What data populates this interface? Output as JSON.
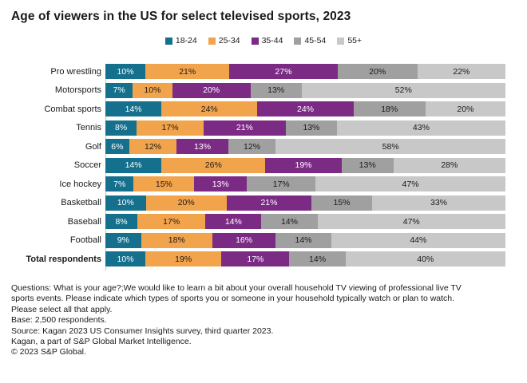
{
  "title": "Age of viewers in the US for select televised sports, 2023",
  "chart_data": {
    "type": "bar",
    "variant": "stacked-horizontal-100pct",
    "title": "Age of viewers in the US for select televised sports, 2023",
    "xlabel": "",
    "ylabel": "",
    "xlim": [
      0,
      100
    ],
    "grid": false,
    "legend_position": "top-center",
    "value_suffix": "%",
    "bold_category": "Total respondents",
    "categories": [
      "Pro wrestling",
      "Motorsports",
      "Combat sports",
      "Tennis",
      "Golf",
      "Soccer",
      "Ice hockey",
      "Basketball",
      "Baseball",
      "Football",
      "Total respondents"
    ],
    "series": [
      {
        "name": "18-24",
        "color": "#15708d",
        "label_color": "#ffffff",
        "values": [
          10,
          7,
          14,
          8,
          6,
          14,
          7,
          10,
          8,
          9,
          10
        ]
      },
      {
        "name": "25-34",
        "color": "#f2a44c",
        "label_color": "#1a1a1a",
        "values": [
          21,
          10,
          24,
          17,
          12,
          26,
          15,
          20,
          17,
          18,
          19
        ]
      },
      {
        "name": "35-44",
        "color": "#7c2b85",
        "label_color": "#ffffff",
        "values": [
          27,
          20,
          24,
          21,
          13,
          19,
          13,
          21,
          14,
          16,
          17
        ]
      },
      {
        "name": "45-54",
        "color": "#a0a0a0",
        "label_color": "#1a1a1a",
        "values": [
          20,
          13,
          18,
          13,
          12,
          13,
          17,
          15,
          14,
          14,
          14
        ]
      },
      {
        "name": "55+",
        "color": "#c8c8c8",
        "label_color": "#1a1a1a",
        "values": [
          22,
          52,
          20,
          43,
          58,
          28,
          47,
          33,
          47,
          44,
          40
        ]
      }
    ]
  },
  "footer": {
    "lines": [
      "Questions: What is your age?;We would like to learn a bit about your overall household TV viewing of professional live TV",
      "sports events. Please indicate which types of sports you or someone in your household typically watch or plan to watch.",
      "Please select all that apply.",
      "Base: 2,500 respondents.",
      "Source:  Kagan 2023 US Consumer Insights survey, third quarter 2023.",
      "Kagan, a part of S&P Global Market Intelligence.",
      "© 2023 S&P Global."
    ]
  }
}
